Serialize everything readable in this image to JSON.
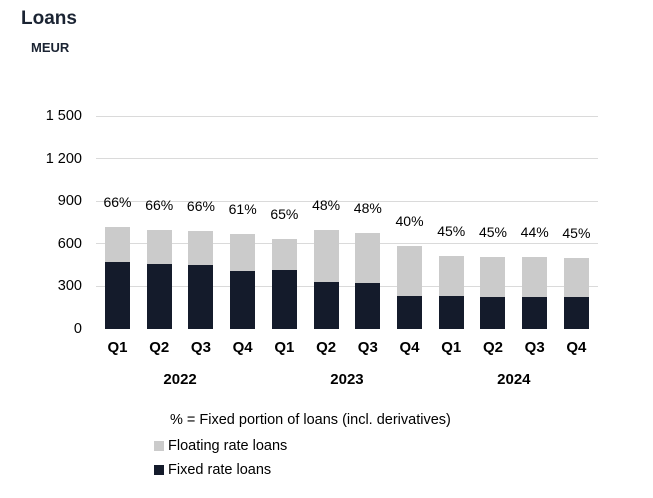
{
  "header": {
    "title": "Loans",
    "unit": "MEUR"
  },
  "colors": {
    "fixed": "#141b2b",
    "floating": "#cbcbcb",
    "gridline": "#dadada",
    "title": "#1b2433",
    "text": "#000000"
  },
  "chart_data": {
    "type": "bar",
    "stacked": true,
    "title": "Loans",
    "ylabel": "MEUR",
    "categories": [
      "Q1",
      "Q2",
      "Q3",
      "Q4",
      "Q1",
      "Q2",
      "Q3",
      "Q4",
      "Q1",
      "Q2",
      "Q3",
      "Q4"
    ],
    "year_groups": [
      "2022",
      "2023",
      "2024"
    ],
    "series": [
      {
        "name": "Fixed rate loans",
        "values": [
          475,
          455,
          450,
          410,
          415,
          330,
          325,
          235,
          233,
          227,
          224,
          227
        ]
      },
      {
        "name": "Floating rate loans",
        "values": [
          245,
          240,
          240,
          258,
          220,
          365,
          350,
          348,
          282,
          278,
          284,
          276
        ]
      }
    ],
    "bar_labels": [
      "66%",
      "66%",
      "66%",
      "61%",
      "65%",
      "48%",
      "48%",
      "40%",
      "45%",
      "45%",
      "44%",
      "45%"
    ],
    "bar_labels_meaning": "% = Fixed portion of loans (incl. derivatives)",
    "ylim": [
      0,
      1500
    ],
    "yticks": {
      "values": [
        1500,
        1200,
        900,
        600,
        300,
        0
      ],
      "labels": [
        "1 500",
        "1 200",
        "900",
        "600",
        "300",
        "0"
      ]
    },
    "grid": "horizontal",
    "legend_position": "bottom-left"
  },
  "legend": {
    "note": "% = Fixed portion of loans (incl. derivatives)",
    "items": [
      {
        "label": "Floating rate loans",
        "color_key": "floating"
      },
      {
        "label": "Fixed rate loans",
        "color_key": "fixed"
      }
    ]
  }
}
